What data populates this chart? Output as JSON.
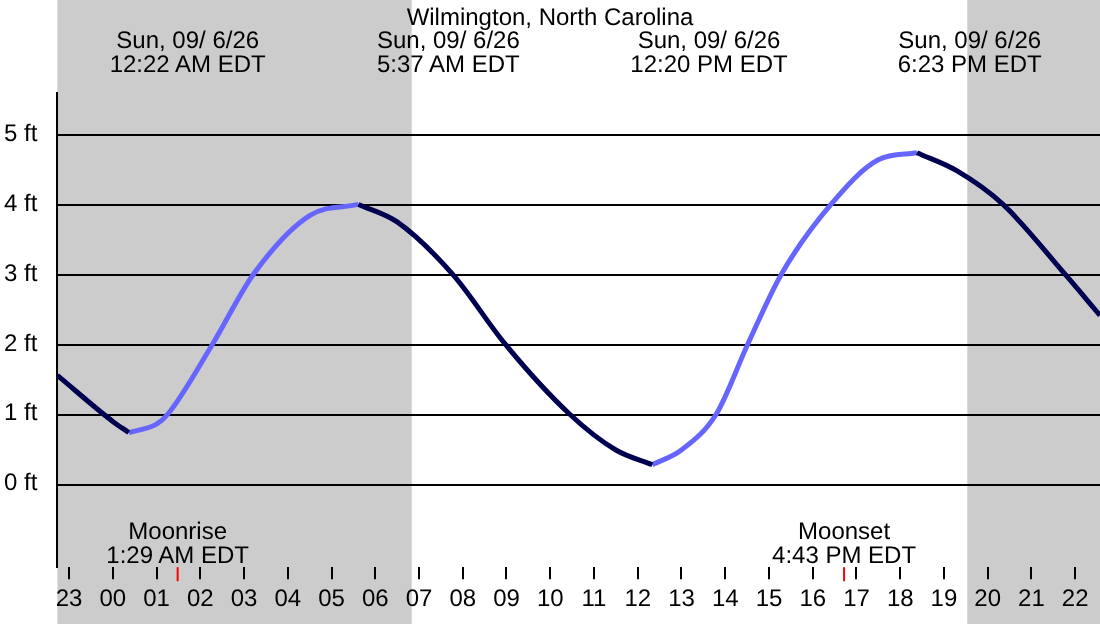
{
  "chart_data": {
    "type": "line",
    "title": "Wilmington, North Carolina",
    "series": [
      {
        "color": "#000050",
        "x": [
          "--09-05T22:44",
          "--09-06T00:00",
          "--09-06T00:22",
          "--09-06T03:00",
          "--09-06T05:37",
          "--09-06T06:30",
          "--09-06T07:46",
          "--09-06T08:58",
          "--09-06T10:26",
          "--09-06T11:30",
          "--09-06T12:20",
          "--09-06T15:00",
          "--09-06T18:23",
          "--09-06T19:18",
          "--09-06T20:21",
          "--09-06T21:46",
          "--09-06T22:34"
        ],
        "values": [
          1.55,
          0.89,
          0.73,
          null,
          4.0,
          3.75,
          3.0,
          2.0,
          1.0,
          0.48,
          0.27,
          null,
          4.74,
          4.48,
          4.0,
          3.0,
          2.41
        ]
      },
      {
        "color": "#6666ff",
        "x": [
          "--09-06T00:22",
          "--09-06T01:00",
          "--09-06T01:16",
          "--09-06T02:17",
          "--09-06T03:13",
          "--09-06T04:30",
          "--09-06T05:37",
          "--09-06T09:00",
          "--09-06T12:20",
          "--09-06T13:00",
          "--09-06T13:48",
          "--09-06T14:31",
          "--09-06T15:17",
          "--09-06T16:25",
          "--09-06T17:30",
          "--09-06T18:23"
        ],
        "values": [
          0.73,
          0.85,
          1.0,
          2.0,
          3.0,
          3.84,
          4.0,
          null,
          0.27,
          0.48,
          1.0,
          2.0,
          3.0,
          4.0,
          4.64,
          4.74
        ]
      }
    ],
    "xlim": [
      "--09-05T22:44",
      "--09-06T22:34"
    ],
    "xticks": [
      {
        "value": "--09-05T23:00",
        "label": "23"
      },
      {
        "value": "--09-06T00:00",
        "label": "00"
      },
      {
        "value": "--09-06T01:00",
        "label": "01"
      },
      {
        "value": "--09-06T02:00",
        "label": "02"
      },
      {
        "value": "--09-06T03:00",
        "label": "03"
      },
      {
        "value": "--09-06T04:00",
        "label": "04"
      },
      {
        "value": "--09-06T05:00",
        "label": "05"
      },
      {
        "value": "--09-06T06:00",
        "label": "06"
      },
      {
        "value": "--09-06T07:00",
        "label": "07"
      },
      {
        "value": "--09-06T08:00",
        "label": "08"
      },
      {
        "value": "--09-06T09:00",
        "label": "09"
      },
      {
        "value": "--09-06T10:00",
        "label": "10"
      },
      {
        "value": "--09-06T11:00",
        "label": "11"
      },
      {
        "value": "--09-06T12:00",
        "label": "12"
      },
      {
        "value": "--09-06T13:00",
        "label": "13"
      },
      {
        "value": "--09-06T14:00",
        "label": "14"
      },
      {
        "value": "--09-06T15:00",
        "label": "15"
      },
      {
        "value": "--09-06T16:00",
        "label": "16"
      },
      {
        "value": "--09-06T17:00",
        "label": "17"
      },
      {
        "value": "--09-06T18:00",
        "label": "18"
      },
      {
        "value": "--09-06T19:00",
        "label": "19"
      },
      {
        "value": "--09-06T20:00",
        "label": "20"
      },
      {
        "value": "--09-06T21:00",
        "label": "21"
      },
      {
        "value": "--09-06T22:00",
        "label": "22"
      }
    ],
    "ylim": [
      -1.2,
      5.6
    ],
    "yticks": [
      {
        "value": 0,
        "label": "0 ft"
      },
      {
        "value": 1,
        "label": "1 ft"
      },
      {
        "value": 2,
        "label": "2 ft"
      },
      {
        "value": 3,
        "label": "3 ft"
      },
      {
        "value": 4,
        "label": "4 ft"
      },
      {
        "value": 5,
        "label": "5 ft"
      }
    ],
    "grid": "y",
    "legend": false,
    "bands": [
      {
        "axis": "x",
        "from": "--09-05T22:44",
        "to": "--09-06T06:50",
        "color": "#cccccc"
      },
      {
        "axis": "x",
        "from": "--09-06T19:32",
        "to": "--09-06T22:34",
        "color": "#cccccc"
      }
    ],
    "ref_lines": [
      {
        "axis": "x",
        "value": "--09-06T01:29",
        "label": "Moonrise\n1:29 AM EDT",
        "color": "#ff0000"
      },
      {
        "axis": "x",
        "value": "--09-06T16:43",
        "label": "Moonset\n4:43 PM EDT",
        "color": "#ff0000"
      }
    ],
    "annotations": [
      "Sun, 09/ 6/26\n12:22 AM EDT",
      "Sun, 09/ 6/26\n5:37 AM EDT",
      "Sun, 09/ 6/26\n12:20 PM EDT",
      "Sun, 09/ 6/26\n6:23 PM EDT"
    ]
  }
}
